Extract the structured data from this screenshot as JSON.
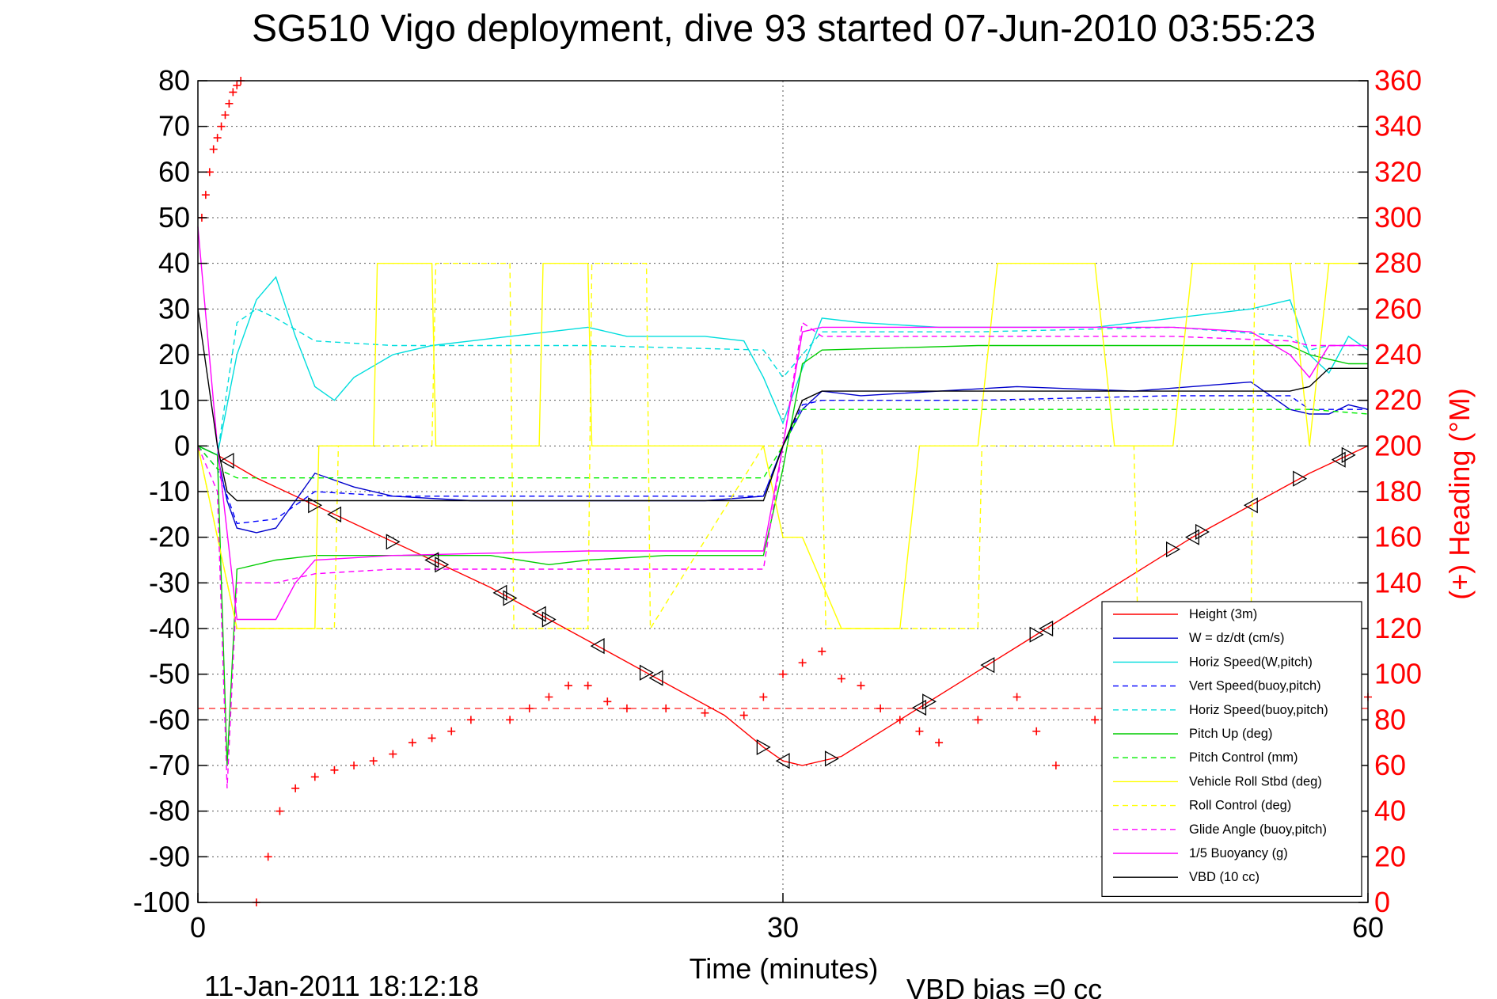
{
  "chart_data": {
    "type": "line",
    "title": "SG510 Vigo deployment, dive 93 started 07-Jun-2010 03:55:23",
    "xlabel": "Time (minutes)",
    "ylabel_right": "(+) Heading (°M)",
    "xlim": [
      0,
      60
    ],
    "ylim": [
      -100,
      80
    ],
    "ylim_right": [
      0,
      360
    ],
    "x_ticks": [
      "0",
      "30",
      "60"
    ],
    "y_ticks": [
      "80",
      "70",
      "60",
      "50",
      "40",
      "30",
      "20",
      "10",
      "0",
      "-10",
      "-20",
      "-30",
      "-40",
      "-50",
      "-60",
      "-70",
      "-80",
      "-90",
      "-100"
    ],
    "y_ticks_right": [
      "360",
      "340",
      "320",
      "300",
      "280",
      "260",
      "240",
      "220",
      "200",
      "180",
      "160",
      "140",
      "120",
      "100",
      "80",
      "60",
      "40",
      "20",
      "0"
    ],
    "grid": true,
    "legend_position": "bottom-right",
    "footer_date": "11-Jan-2011 18:12:18",
    "footer_vbd": "VBD bias =0 cc",
    "series": [
      {
        "name": "Height (3m)",
        "color": "#ff0000",
        "style": "solid",
        "x": [
          0,
          1,
          3,
          6,
          9,
          12,
          15,
          18,
          21,
          24,
          27,
          29,
          30,
          31,
          33,
          36,
          39,
          42,
          45,
          48,
          51,
          54,
          57,
          60
        ],
        "y": [
          0,
          -2,
          -7,
          -13,
          -19,
          -25,
          -31,
          -38,
          -45,
          -52,
          -59,
          -66,
          -69,
          -70,
          -68,
          -60,
          -52,
          -44,
          -36,
          -28,
          -20,
          -13,
          -6,
          0
        ]
      },
      {
        "name": "W = dz/dt (cm/s)",
        "color": "#0000cc",
        "style": "solid",
        "x": [
          0,
          1,
          1.5,
          2,
          3,
          4,
          5,
          6,
          8,
          10,
          14,
          18,
          22,
          26,
          29,
          30,
          31,
          32,
          34,
          38,
          42,
          48,
          54,
          56,
          57,
          58,
          59,
          60
        ],
        "y": [
          0,
          -2,
          -12,
          -18,
          -19,
          -18,
          -12,
          -6,
          -9,
          -11,
          -12,
          -12,
          -12,
          -12,
          -11,
          0,
          8,
          12,
          11,
          12,
          13,
          12,
          14,
          8,
          7,
          7,
          9,
          8
        ]
      },
      {
        "name": "Horiz Speed(W,pitch)",
        "color": "#00dddd",
        "style": "solid",
        "x": [
          0,
          1,
          2,
          3,
          4,
          5,
          6,
          7,
          8,
          10,
          12,
          14,
          16,
          18,
          20,
          22,
          24,
          26,
          28,
          29,
          30,
          31,
          32,
          34,
          38,
          42,
          46,
          50,
          54,
          56,
          57,
          58,
          59,
          60
        ],
        "y": [
          0,
          -2,
          20,
          32,
          37,
          24,
          13,
          10,
          15,
          20,
          22,
          23,
          24,
          25,
          26,
          24,
          24,
          24,
          23,
          15,
          5,
          17,
          28,
          27,
          26,
          26,
          26,
          28,
          30,
          32,
          20,
          16,
          24,
          21
        ]
      },
      {
        "name": "Vert Speed(buoy,pitch)",
        "color": "#0000ff",
        "style": "dashed",
        "x": [
          0,
          1,
          2,
          4,
          6,
          10,
          20,
          29,
          30,
          31,
          32,
          40,
          50,
          56,
          57,
          58,
          60
        ],
        "y": [
          0,
          -5,
          -17,
          -16,
          -10,
          -11,
          -11,
          -11,
          0,
          9,
          10,
          10,
          11,
          11,
          8,
          8,
          8
        ]
      },
      {
        "name": "Horiz Speed(buoy,pitch)",
        "color": "#00dddd",
        "style": "dashed",
        "x": [
          0,
          1,
          2,
          3,
          4,
          6,
          10,
          20,
          29,
          30,
          31,
          32,
          40,
          50,
          56,
          57,
          58,
          60
        ],
        "y": [
          0,
          -2,
          27,
          30,
          28,
          23,
          22,
          22,
          21,
          15,
          20,
          25,
          25,
          26,
          24,
          21,
          22,
          22
        ]
      },
      {
        "name": "Pitch Up (deg)",
        "color": "#00cc00",
        "style": "solid",
        "x": [
          0,
          1,
          1.5,
          2,
          4,
          6,
          10,
          15,
          18,
          20,
          24,
          29,
          30,
          31,
          32,
          40,
          48,
          56,
          57,
          58,
          59,
          60
        ],
        "y": [
          0,
          -2,
          -70,
          -27,
          -25,
          -24,
          -24,
          -24,
          -26,
          -25,
          -24,
          -24,
          -5,
          18,
          21,
          22,
          22,
          22,
          20,
          19,
          18,
          18
        ]
      },
      {
        "name": "Pitch Control (mm)",
        "color": "#00ee00",
        "style": "dashed",
        "x": [
          0,
          1,
          2,
          3,
          10,
          20,
          29,
          30,
          31,
          32,
          40,
          50,
          56,
          57,
          60
        ],
        "y": [
          0,
          -5,
          -7,
          -7,
          -7,
          -7,
          -7,
          0,
          8,
          8,
          8,
          8,
          8,
          8,
          7
        ]
      },
      {
        "name": "Vehicle Roll Stbd (deg)",
        "color": "#ffff00",
        "style": "solid",
        "x": [
          0,
          2,
          3,
          6,
          6.2,
          9,
          9.2,
          12,
          12.2,
          17.5,
          17.7,
          20,
          20.2,
          23,
          23.2,
          29,
          30,
          31,
          33,
          36,
          37,
          40,
          41,
          46,
          47,
          50,
          51,
          56,
          57,
          58,
          59,
          60
        ],
        "y": [
          0,
          -40,
          -40,
          -40,
          0,
          0,
          40,
          40,
          0,
          0,
          40,
          40,
          0,
          0,
          0,
          0,
          -20,
          -20,
          -40,
          -40,
          0,
          0,
          40,
          40,
          0,
          0,
          40,
          40,
          0,
          40,
          40,
          40
        ]
      },
      {
        "name": "Roll Control (deg)",
        "color": "#ffff00",
        "style": "dashed",
        "x": [
          0,
          2,
          3,
          7,
          7.2,
          12,
          12.2,
          16,
          16.2,
          20,
          20.2,
          23,
          23.2,
          29,
          30,
          32,
          32.2,
          40,
          40.2,
          48,
          48.2,
          54,
          54.2,
          60
        ],
        "y": [
          0,
          -40,
          -40,
          -40,
          0,
          0,
          40,
          40,
          -40,
          -40,
          40,
          40,
          -40,
          0,
          0,
          0,
          -40,
          -40,
          0,
          0,
          -40,
          -40,
          40,
          40
        ]
      },
      {
        "name": "Glide Angle (buoy,pitch)",
        "color": "#ff00ff",
        "style": "dashed",
        "x": [
          0,
          1,
          1.5,
          2,
          4,
          6,
          10,
          20,
          29,
          30,
          31,
          32,
          40,
          50,
          56,
          57,
          60
        ],
        "y": [
          0,
          -10,
          -75,
          -30,
          -30,
          -28,
          -27,
          -27,
          -27,
          0,
          27,
          24,
          24,
          24,
          23,
          22,
          22
        ]
      },
      {
        "name": "1/5 Buoyancy (g)",
        "color": "#ff00ff",
        "style": "solid",
        "x": [
          0,
          1,
          2,
          3,
          4,
          5,
          6,
          10,
          20,
          29,
          30,
          31,
          32,
          40,
          50,
          54,
          56,
          57,
          58,
          60
        ],
        "y": [
          48,
          0,
          -38,
          -38,
          -38,
          -30,
          -25,
          -24,
          -23,
          -23,
          0,
          25,
          26,
          26,
          26,
          25,
          20,
          15,
          22,
          22
        ]
      },
      {
        "name": "VBD (10 cc)",
        "color": "#000000",
        "style": "solid",
        "x": [
          0,
          1,
          1.5,
          2,
          10,
          20,
          29,
          30,
          31,
          32,
          40,
          50,
          56,
          57,
          58,
          60
        ],
        "y": [
          30,
          0,
          -10,
          -12,
          -12,
          -12,
          -12,
          0,
          10,
          12,
          12,
          12,
          12,
          13,
          17,
          17
        ]
      },
      {
        "name": "(+) Heading (°M)",
        "color": "#ff0000",
        "style": "plus",
        "axis": "right",
        "x": [
          0.2,
          0.4,
          0.6,
          0.8,
          1.0,
          1.2,
          1.4,
          1.6,
          1.8,
          2.0,
          2.2,
          2.4,
          2.6,
          3.0,
          3.6,
          4.2,
          5.0,
          6.0,
          7.0,
          8.0,
          9.0,
          10.0,
          11.0,
          12.0,
          13.0,
          14.0,
          16.0,
          17.0,
          18.0,
          19.0,
          20.0,
          21.0,
          22.0,
          24.0,
          26.0,
          28.0,
          29.0,
          30.0,
          31.0,
          32.0,
          33.0,
          34.0,
          35.0,
          36.0,
          37.0,
          38.0,
          40.0,
          42.0,
          43.0,
          44.0,
          46.0,
          48.0,
          50.0,
          52.0,
          54.0,
          55.0,
          58.0,
          60.0
        ],
        "y": [
          300,
          310,
          320,
          330,
          335,
          340,
          345,
          350,
          355,
          358,
          360,
          362,
          365,
          0,
          20,
          40,
          50,
          55,
          58,
          60,
          62,
          65,
          70,
          72,
          75,
          80,
          80,
          85,
          90,
          95,
          95,
          88,
          85,
          85,
          83,
          82,
          90,
          100,
          105,
          110,
          98,
          95,
          85,
          80,
          75,
          70,
          80,
          90,
          75,
          60,
          80,
          85,
          85,
          85,
          85,
          85,
          85,
          90
        ]
      }
    ]
  }
}
